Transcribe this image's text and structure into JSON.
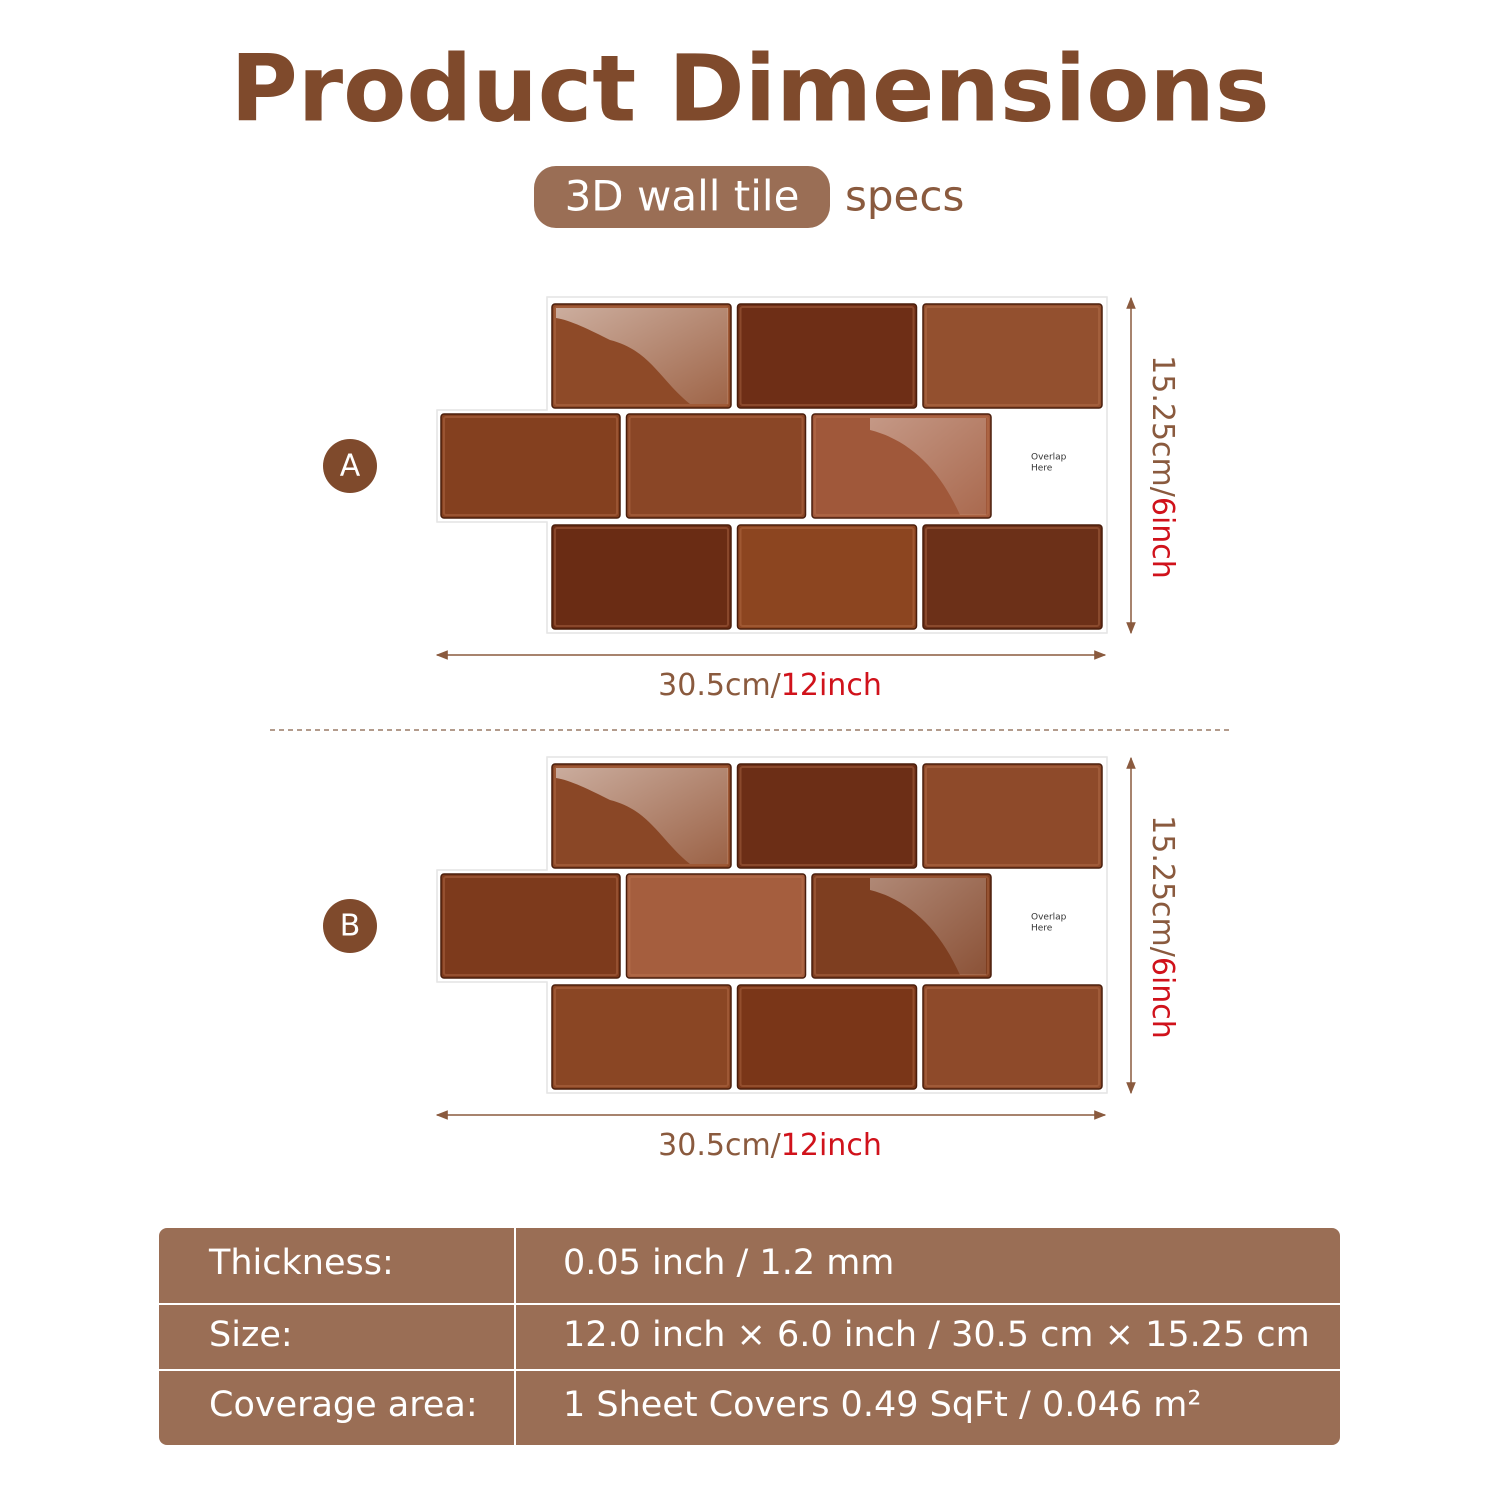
{
  "header": {
    "title": "Product Dimensions",
    "badge": "3D wall tile",
    "subtitle": "specs"
  },
  "panels": [
    {
      "label": "A",
      "overlap": [
        "Overlap",
        "Here"
      ],
      "height": {
        "metric": "15.25cm/",
        "imperial": "6inch"
      },
      "width": {
        "metric": "30.5cm/",
        "imperial": "12inch"
      }
    },
    {
      "label": "B",
      "overlap": [
        "Overlap",
        "Here"
      ],
      "height": {
        "metric": "15.25cm/",
        "imperial": "6inch"
      },
      "width": {
        "metric": "30.5cm/",
        "imperial": "12inch"
      }
    }
  ],
  "table": {
    "rows": [
      [
        "Thickness:",
        "0.05 inch / 1.2 mm"
      ],
      [
        "Size:",
        "12.0 inch × 6.0 inch / 30.5 cm × 15.25 cm"
      ],
      [
        "Coverage area:",
        "1 Sheet Covers 0.49 SqFt / 0.046 m²"
      ]
    ]
  }
}
